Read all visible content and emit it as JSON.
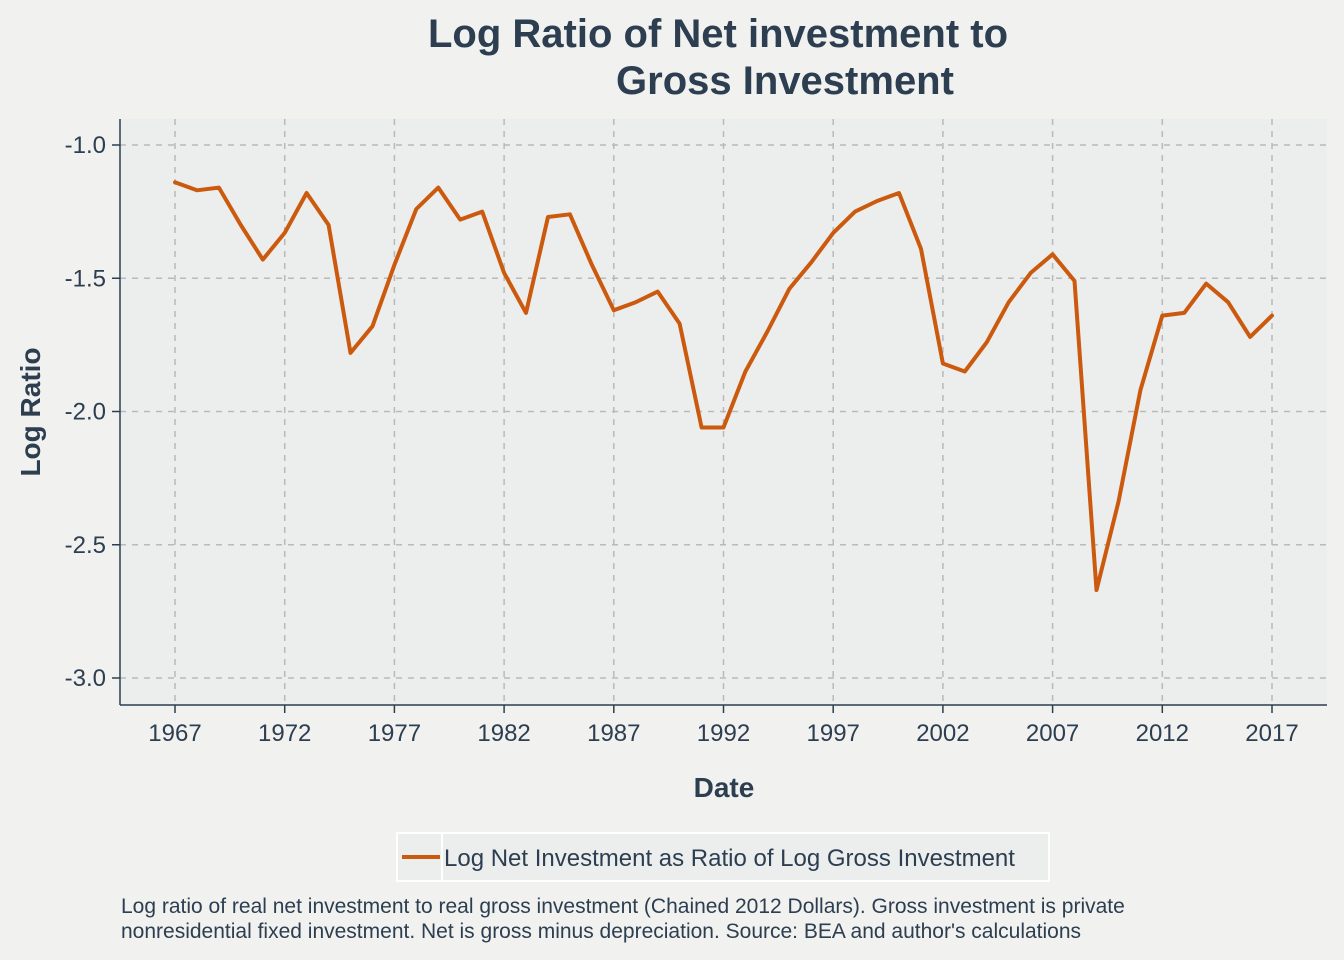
{
  "chart_data": {
    "type": "line",
    "title_lines": [
      "Log Ratio of Net investment to",
      "Gross Investment"
    ],
    "xlabel": "Date",
    "ylabel": "Log Ratio",
    "xlim": [
      1964.5,
      2019.5
    ],
    "ylim": [
      -3.1,
      -0.9
    ],
    "x_ticks": [
      1967,
      1972,
      1977,
      1982,
      1987,
      1992,
      1997,
      2002,
      2007,
      2012,
      2017
    ],
    "y_ticks": [
      -1.0,
      -1.5,
      -2.0,
      -2.5,
      -3.0
    ],
    "y_tick_labels": [
      "-1.0",
      "-1.5",
      "-2.0",
      "-2.5",
      "-3.0"
    ],
    "grid": true,
    "legend_position": "bottom",
    "series": [
      {
        "name": "Log Net Investment as Ratio of Log Gross Investment",
        "color": "#cc5a0e",
        "x": [
          1967,
          1968,
          1969,
          1970,
          1971,
          1972,
          1973,
          1974,
          1975,
          1976,
          1977,
          1978,
          1979,
          1980,
          1981,
          1982,
          1983,
          1984,
          1985,
          1986,
          1987,
          1988,
          1989,
          1990,
          1991,
          1992,
          1993,
          1994,
          1995,
          1996,
          1997,
          1998,
          1999,
          2000,
          2001,
          2002,
          2003,
          2004,
          2005,
          2006,
          2007,
          2008,
          2009,
          2010,
          2011,
          2012,
          2013,
          2014,
          2015,
          2016,
          2017
        ],
        "values": [
          -1.14,
          -1.17,
          -1.16,
          -1.3,
          -1.43,
          -1.33,
          -1.18,
          -1.3,
          -1.78,
          -1.68,
          -1.45,
          -1.24,
          -1.16,
          -1.28,
          -1.25,
          -1.48,
          -1.63,
          -1.27,
          -1.26,
          -1.45,
          -1.62,
          -1.59,
          -1.55,
          -1.67,
          -2.06,
          -2.06,
          -1.85,
          -1.7,
          -1.54,
          -1.44,
          -1.33,
          -1.25,
          -1.21,
          -1.18,
          -1.39,
          -1.82,
          -1.85,
          -1.74,
          -1.59,
          -1.48,
          -1.41,
          -1.51,
          -2.67,
          -2.34,
          -1.92,
          -1.64,
          -1.63,
          -1.52,
          -1.59,
          -1.72,
          -1.64
        ]
      }
    ],
    "note_lines": [
      "Log ratio of real net investment to real gross investment (Chained 2012 Dollars). Gross investment is private",
      "nonresidential fixed investment. Net is gross minus depreciation. Source: BEA and author's calculations"
    ]
  },
  "colors": {
    "page_background": "#f1f1ef",
    "plot_background": "#eceeee",
    "grid": "#b9b9b9",
    "text": "#2c3e50",
    "line": "#cc5a0e"
  }
}
